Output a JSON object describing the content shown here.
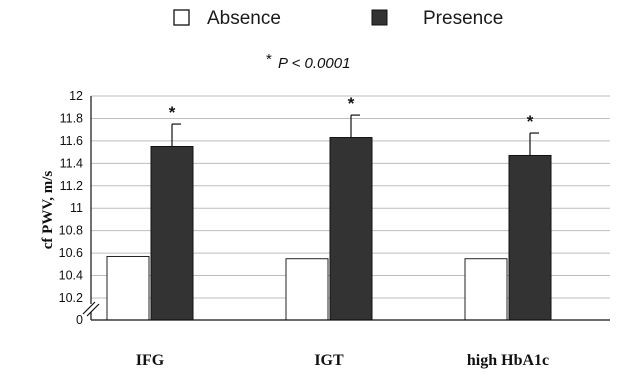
{
  "chart_data": {
    "type": "bar",
    "categories": [
      "IFG",
      "IGT",
      "high HbA1c"
    ],
    "series": [
      {
        "name": "Absence",
        "values": [
          10.57,
          10.55,
          10.55
        ],
        "color": "#ffffff"
      },
      {
        "name": "Presence",
        "values": [
          11.55,
          11.63,
          11.47
        ],
        "error": [
          0.2,
          0.2,
          0.2
        ],
        "color": "#333333"
      }
    ],
    "significance_markers": [
      "*",
      "*",
      "*"
    ],
    "annotation": "P < 0.0001",
    "annotation_prefix": "*",
    "ylabel": "cf PWV, m/s",
    "xlabel": "",
    "yticks": [
      "0",
      "10.2",
      "10.4",
      "10.6",
      "10.8",
      "11",
      "11.2",
      "11.4",
      "11.6",
      "11.8",
      "12"
    ],
    "ylim": [
      10.0,
      12.0
    ],
    "axis_break": true,
    "grid": true,
    "legend_position": "top-center"
  }
}
